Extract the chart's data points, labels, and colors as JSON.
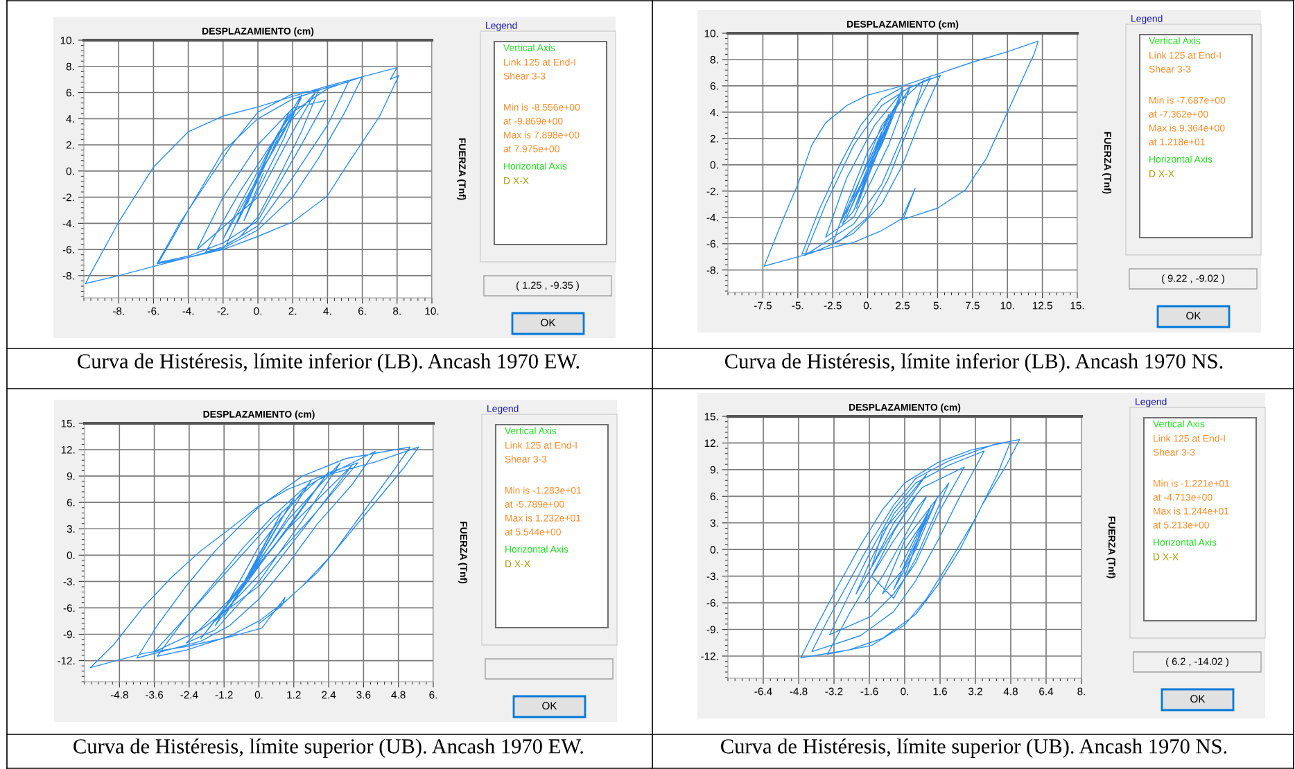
{
  "chart_data": [
    {
      "type": "line",
      "title": "DESPLAZAMIENTO (cm)",
      "ylabel": "FUERZA (Tnf)",
      "grid": true,
      "marker": "none",
      "line_style": "solid",
      "xlim": [
        -10,
        10
      ],
      "xticks": [
        {
          "value": -8,
          "label": "-8."
        },
        {
          "value": -6,
          "label": "-6."
        },
        {
          "value": -4,
          "label": "-4."
        },
        {
          "value": -2,
          "label": "-2."
        },
        {
          "value": 0,
          "label": "0."
        },
        {
          "value": 2,
          "label": "2."
        },
        {
          "value": 4,
          "label": "4."
        },
        {
          "value": 6,
          "label": "6."
        },
        {
          "value": 8,
          "label": "8."
        },
        {
          "value": 10,
          "label": "10."
        }
      ],
      "ylim": [
        -9.7,
        10
      ],
      "yticks": [
        {
          "value": -8,
          "label": "-8."
        },
        {
          "value": -6,
          "label": "-6."
        },
        {
          "value": -4,
          "label": "-4."
        },
        {
          "value": -2,
          "label": "-2."
        },
        {
          "value": 0,
          "label": "0."
        },
        {
          "value": 2,
          "label": "2."
        },
        {
          "value": 4,
          "label": "4."
        },
        {
          "value": 6,
          "label": "6."
        },
        {
          "value": 8,
          "label": "8."
        },
        {
          "value": 10,
          "label": "10."
        }
      ],
      "series": [
        {
          "color": "#2b8ef0",
          "x": [
            0,
            0.6,
            1.2,
            0.5,
            -0.6,
            0.3,
            1.8,
            0.8,
            -1.2,
            0.2,
            2.5,
            1.5,
            -2,
            -1,
            1,
            3.3,
            2,
            0,
            -3.5,
            -2,
            0,
            2,
            3.9,
            2.5,
            0,
            -2,
            -4,
            -5.7,
            -4,
            -2,
            0,
            2,
            4,
            5.2,
            4,
            2,
            0,
            -2,
            -3,
            -1,
            2,
            4,
            6,
            5,
            3.5,
            2,
            0,
            -2,
            -4,
            -6,
            -8,
            -9.9,
            -9.6,
            -8,
            -6,
            -4,
            -2,
            0,
            2,
            4,
            6,
            8.0,
            7.6,
            8.1,
            7,
            6,
            5,
            4,
            2,
            0,
            -2,
            -4,
            -5.8,
            -4.5,
            -3,
            -1.5,
            0,
            2,
            3.5,
            2.5,
            1,
            0,
            -1,
            -1.8,
            -0.5,
            1,
            2.5,
            1.5,
            0,
            -0.8,
            0.3
          ],
          "values": [
            0,
            1.5,
            3,
            1,
            -2.5,
            0.5,
            4.5,
            1.5,
            -4,
            0,
            5.6,
            3,
            -5.2,
            -2.5,
            2.5,
            6,
            3,
            -2,
            -6,
            -2,
            2,
            4.8,
            5.4,
            2,
            -3.8,
            -5.5,
            -6.5,
            -7,
            -3,
            1.5,
            4,
            5.5,
            6.4,
            6.8,
            3.5,
            -0.5,
            -4.2,
            -5.8,
            -6.2,
            -1.5,
            4.5,
            6.3,
            7.2,
            4.5,
            1,
            -2,
            -4.5,
            -5.9,
            -6.6,
            -7.3,
            -8,
            -8.6,
            -7.8,
            -3.9,
            0.3,
            3,
            4.2,
            4.9,
            5.7,
            6.5,
            7.2,
            7.9,
            7.0,
            7.3,
            4.2,
            2.2,
            0.2,
            -1.9,
            -3.9,
            -5,
            -6,
            -6.6,
            -7.1,
            -4,
            -1,
            2,
            4.5,
            5.9,
            6.2,
            3,
            -1,
            -3.5,
            -5,
            -5.6,
            -1.8,
            2.5,
            5.8,
            2.5,
            -1.5,
            -3.8,
            -0.2
          ]
        }
      ],
      "annotations": [
        "Curva de Histéresis, límite inferior (LB). Ancash 1970 EW.",
        "Legend",
        "Vertical Axis",
        "Link 125 at End-I",
        "Shear 3-3",
        "Min is -8.556e+00",
        "at -9.869e+00",
        "Max is 7.898e+00",
        "at 7.975e+00",
        "Horizontal Axis",
        "D X-X",
        "OK",
        "( 1.25 , -9.35 )"
      ]
    },
    {
      "type": "line",
      "title": "DESPLAZAMIENTO (cm)",
      "ylabel": "FUERZA (Tnf)",
      "grid": true,
      "marker": "none",
      "line_style": "solid",
      "xlim": [
        -10,
        15
      ],
      "xticks": [
        {
          "value": -7.5,
          "label": "-7.5"
        },
        {
          "value": -5,
          "label": "-5."
        },
        {
          "value": -2.5,
          "label": "-2.5"
        },
        {
          "value": 0,
          "label": "0."
        },
        {
          "value": 2.5,
          "label": "2.5"
        },
        {
          "value": 5,
          "label": "5."
        },
        {
          "value": 7.5,
          "label": "7.5"
        },
        {
          "value": 10,
          "label": "10."
        },
        {
          "value": 12.5,
          "label": "12.5"
        },
        {
          "value": 15,
          "label": "15."
        }
      ],
      "ylim": [
        -9.7,
        10
      ],
      "yticks": [
        {
          "value": -8,
          "label": "-8."
        },
        {
          "value": -6,
          "label": "-6."
        },
        {
          "value": -4,
          "label": "-4."
        },
        {
          "value": -2,
          "label": "-2."
        },
        {
          "value": 0,
          "label": "0."
        },
        {
          "value": 2,
          "label": "2."
        },
        {
          "value": 4,
          "label": "4."
        },
        {
          "value": 6,
          "label": "6."
        },
        {
          "value": 8,
          "label": "8."
        },
        {
          "value": 10,
          "label": "10."
        }
      ],
      "series": [
        {
          "color": "#2b8ef0",
          "x": [
            0,
            1,
            -0.5,
            1.5,
            -1,
            2,
            0,
            -1.5,
            0.5,
            2.5,
            1,
            -2,
            -0.5,
            1.5,
            3,
            1.5,
            -1,
            -3,
            -1.5,
            0.5,
            2.5,
            4.5,
            3,
            1,
            -1,
            -3.5,
            -4.5,
            -3,
            -1,
            1,
            3,
            5.2,
            4,
            2.5,
            1,
            -1,
            -2.5,
            -1.5,
            0,
            2,
            4,
            3,
            1.5,
            0,
            -2,
            -4,
            -6,
            -7.4,
            -6,
            -5,
            -4,
            -3,
            -1.5,
            0,
            2.5,
            5,
            7.5,
            10,
            12.2,
            11.9,
            11.5,
            10,
            8.5,
            7,
            5,
            2.4,
            3.4,
            2.6,
            1,
            -1,
            -3,
            -4.7,
            -3.5,
            -2,
            -0.5,
            1,
            2.5,
            1.5,
            0,
            -1,
            -1.8,
            -0.5,
            1,
            2,
            0.5,
            -0.8
          ],
          "values": [
            0,
            2.5,
            -2,
            3.8,
            -3.5,
            4.5,
            -0.5,
            -4,
            1,
            5.5,
            1.5,
            -4.5,
            -1,
            3.5,
            5.8,
            1.5,
            -4,
            -5.5,
            -1,
            3,
            5.6,
            6.6,
            3.5,
            -1.5,
            -4.5,
            -6.2,
            -6.9,
            -3,
            1.5,
            4.5,
            5.9,
            6.8,
            4,
            0,
            -3,
            -5.2,
            -6,
            -3,
            1,
            4.5,
            6.4,
            3,
            -1,
            -4,
            -5.8,
            -6.7,
            -7.3,
            -7.7,
            -4,
            -1.5,
            1.5,
            3.2,
            4.5,
            5.3,
            6,
            6.9,
            7.8,
            8.6,
            9.4,
            8.4,
            7.5,
            4,
            0.5,
            -1.9,
            -3.3,
            -4.2,
            -1.8,
            -4.0,
            -5,
            -5.9,
            -6.4,
            -6.8,
            -3.5,
            0,
            3,
            5,
            5.9,
            3,
            -1,
            -3.5,
            -4.5,
            -1,
            3,
            4.4,
            0.5,
            -3.3
          ]
        }
      ],
      "annotations": [
        "Curva de Histéresis, límite inferior (LB). Ancash 1970 NS.",
        "Legend",
        "Vertical Axis",
        "Link 125 at End-I",
        "Shear 3-3",
        "Min is -7.687e+00",
        "at -7.362e+00",
        "Max is 9.364e+00",
        "at 1.218e+01",
        "Horizontal Axis",
        "D X-X",
        "OK",
        "( 9.22 , -9.02 )"
      ]
    },
    {
      "type": "line",
      "title": "DESPLAZAMIENTO (cm)",
      "ylabel": "FUERZA (Tnf)",
      "grid": true,
      "marker": "none",
      "line_style": "solid",
      "xlim": [
        -6,
        6
      ],
      "xticks": [
        {
          "value": -4.8,
          "label": "-4.8"
        },
        {
          "value": -3.6,
          "label": "-3.6"
        },
        {
          "value": -2.4,
          "label": "-2.4"
        },
        {
          "value": -1.2,
          "label": "-1.2"
        },
        {
          "value": 0,
          "label": "0."
        },
        {
          "value": 1.2,
          "label": "1.2"
        },
        {
          "value": 2.4,
          "label": "2.4"
        },
        {
          "value": 3.6,
          "label": "3.6"
        },
        {
          "value": 4.8,
          "label": "4.8"
        },
        {
          "value": 6,
          "label": "6."
        }
      ],
      "ylim": [
        -14.4,
        15
      ],
      "yticks": [
        {
          "value": -12,
          "label": "-12."
        },
        {
          "value": -9,
          "label": "-9."
        },
        {
          "value": -6,
          "label": "-6."
        },
        {
          "value": -3,
          "label": "-3."
        },
        {
          "value": 0,
          "label": "0."
        },
        {
          "value": 3,
          "label": "3."
        },
        {
          "value": 6,
          "label": "6."
        },
        {
          "value": 9,
          "label": "9."
        },
        {
          "value": 12,
          "label": "12."
        },
        {
          "value": 15,
          "label": "15."
        }
      ],
      "series": [
        {
          "color": "#2b8ef0",
          "x": [
            0,
            0.5,
            -0.5,
            0.8,
            -0.8,
            1.2,
            -1.2,
            1.8,
            0,
            -1.5,
            2.4,
            1,
            -2,
            -0.5,
            1,
            2.8,
            1.5,
            0,
            -1.5,
            -2.5,
            -1,
            1,
            3.2,
            2,
            0,
            -2,
            -3.6,
            -2.5,
            -1,
            0.5,
            2,
            4,
            3.2,
            2,
            1,
            0,
            -1,
            -2,
            -4.2,
            -3.5,
            -2.5,
            -1.5,
            0,
            1.5,
            3,
            5.2,
            4.5,
            3.5,
            2.5,
            1.5,
            0.5,
            0,
            0.8,
            0.9,
            0.1,
            -1,
            -2.5,
            -4,
            -5.8,
            -5,
            -4,
            -3,
            -2,
            -1,
            0,
            1,
            2,
            4,
            5.5,
            5,
            4,
            3,
            2,
            1,
            0,
            -1,
            -2.5,
            -3.5,
            -2.5,
            -1.5,
            -0.5,
            0.5,
            1.5,
            2.5,
            3.4,
            2,
            0.5,
            -0.5,
            -1.5,
            -0.5,
            0.5
          ],
          "values": [
            0,
            3,
            -3,
            5,
            -5,
            6.5,
            -7,
            8.5,
            1,
            -8,
            9.5,
            3,
            -9.5,
            -3,
            4,
            10.5,
            4,
            -3,
            -8.5,
            -10,
            -5,
            3,
            10.2,
            5,
            -3.5,
            -8.5,
            -11,
            -7,
            -1.5,
            4,
            8.5,
            11.8,
            8,
            3.5,
            -1,
            -5,
            -8,
            -9.8,
            -11.7,
            -8,
            -3.5,
            0.5,
            5.5,
            9,
            11,
            12.3,
            9,
            4.5,
            0,
            -3.5,
            -6.5,
            -7.8,
            -5.7,
            -4.8,
            -8.3,
            -9.3,
            -10.4,
            -11.2,
            -12.8,
            -10.2,
            -6,
            -2.5,
            0.5,
            3,
            5.6,
            7.5,
            8.8,
            10.6,
            12.3,
            10,
            6,
            2,
            -2,
            -5,
            -7.5,
            -9.2,
            -10.8,
            -11.5,
            -7,
            -3,
            1,
            4.5,
            7.5,
            9.5,
            10.5,
            5,
            -0.5,
            -4,
            -7.5,
            -3,
            1
          ]
        }
      ],
      "annotations": [
        "Curva de Histéresis, límite superior (UB). Ancash 1970 EW.",
        "Legend",
        "Vertical Axis",
        "Link 125 at End-I",
        "Shear 3-3",
        "Min is -1.283e+01",
        "at -5.789e+00",
        "Max is 1.232e+01",
        "at 5.544e+00",
        "Horizontal Axis",
        "D X-X",
        "OK"
      ]
    },
    {
      "type": "line",
      "title": "DESPLAZAMIENTO (cm)",
      "ylabel": "FUERZA (Tnf)",
      "grid": true,
      "marker": "none",
      "line_style": "solid",
      "xlim": [
        -8,
        8
      ],
      "xticks": [
        {
          "value": -6.4,
          "label": "-6.4"
        },
        {
          "value": -4.8,
          "label": "-4.8"
        },
        {
          "value": -3.2,
          "label": "-3.2"
        },
        {
          "value": -1.6,
          "label": "-1.6"
        },
        {
          "value": 0,
          "label": "0."
        },
        {
          "value": 1.6,
          "label": "1.6"
        },
        {
          "value": 3.2,
          "label": "3.2"
        },
        {
          "value": 4.8,
          "label": "4.8"
        },
        {
          "value": 6.4,
          "label": "6.4"
        },
        {
          "value": 8,
          "label": "8."
        }
      ],
      "ylim": [
        -14.5,
        15
      ],
      "yticks": [
        {
          "value": -12,
          "label": "-12."
        },
        {
          "value": -9,
          "label": "-9."
        },
        {
          "value": -6,
          "label": "-6."
        },
        {
          "value": -3,
          "label": "-3."
        },
        {
          "value": 0,
          "label": "0."
        },
        {
          "value": 3,
          "label": "3."
        },
        {
          "value": 6,
          "label": "6."
        },
        {
          "value": 9,
          "label": "9."
        },
        {
          "value": 12,
          "label": "12."
        },
        {
          "value": 15,
          "label": "15."
        }
      ],
      "series": [
        {
          "color": "#2b8ef0",
          "x": [
            0,
            0.8,
            -0.2,
            1,
            0,
            1.2,
            -0.5,
            0.5,
            1.5,
            0,
            -1,
            0,
            2,
            0.5,
            -0.5,
            -1.5,
            -0.5,
            0.5,
            -0.8,
            -1.5,
            -1,
            0,
            1,
            -0.5,
            -1.6,
            -2.2,
            -1.5,
            -0.5,
            0.8,
            2.7,
            1.5,
            0.5,
            -0.5,
            -1.5,
            -3.4,
            -2.5,
            -1.5,
            -0.5,
            0.5,
            2,
            3.6,
            2.5,
            1.5,
            0.5,
            -0.5,
            -2,
            -4.2,
            -3.5,
            -2.5,
            -1.5,
            -0.5,
            0.5,
            2,
            4,
            5.2,
            4.6,
            3.5,
            2.5,
            1.5,
            0.5,
            -1,
            -2.5,
            -4.7,
            -4,
            -3,
            -2,
            -1,
            0,
            1.5,
            3,
            4.8,
            4.2,
            3.2,
            2,
            1,
            0,
            -1.5,
            -3.5,
            -2.5,
            -1.5,
            -0.5,
            0.5,
            1,
            0,
            -1,
            -1.8
          ],
          "values": [
            0,
            3,
            -2,
            4,
            -3,
            5,
            -4.5,
            0,
            6,
            -2,
            -5,
            1,
            7.5,
            -1,
            -5.5,
            -3,
            2,
            6,
            1,
            -2,
            2,
            5,
            8.5,
            4,
            -1.5,
            -5,
            -2,
            3,
            7,
            9.3,
            4,
            -1.5,
            -5,
            -7.5,
            -9.6,
            -5,
            0,
            4.5,
            7.5,
            9.5,
            11.1,
            6,
            1,
            -3.5,
            -7,
            -9.7,
            -11.5,
            -8,
            -3.5,
            1,
            5,
            8,
            10,
            11.8,
            12.4,
            9.5,
            5,
            0,
            -4,
            -7.3,
            -10,
            -11.3,
            -12.2,
            -8.7,
            -4,
            0.5,
            4.5,
            7.5,
            9.8,
            11.2,
            12.2,
            8.5,
            3.5,
            -1.5,
            -5.5,
            -8.5,
            -10.8,
            -11.8,
            -7.2,
            -3,
            1,
            4.5,
            6,
            1.5,
            -3,
            -6
          ]
        }
      ],
      "annotations": [
        "Curva de Histéresis, límite superior (UB). Ancash 1970 NS.",
        "Legend",
        "Vertical Axis",
        "Link 125 at End-I",
        "Shear 3-3",
        "Min is -1.221e+01",
        "at -4.713e+00",
        "Max is 1.244e+01",
        "at 5.213e+00",
        "Horizontal Axis",
        "D X-X",
        "OK",
        "( 6.2 , -14.02 )"
      ]
    }
  ]
}
